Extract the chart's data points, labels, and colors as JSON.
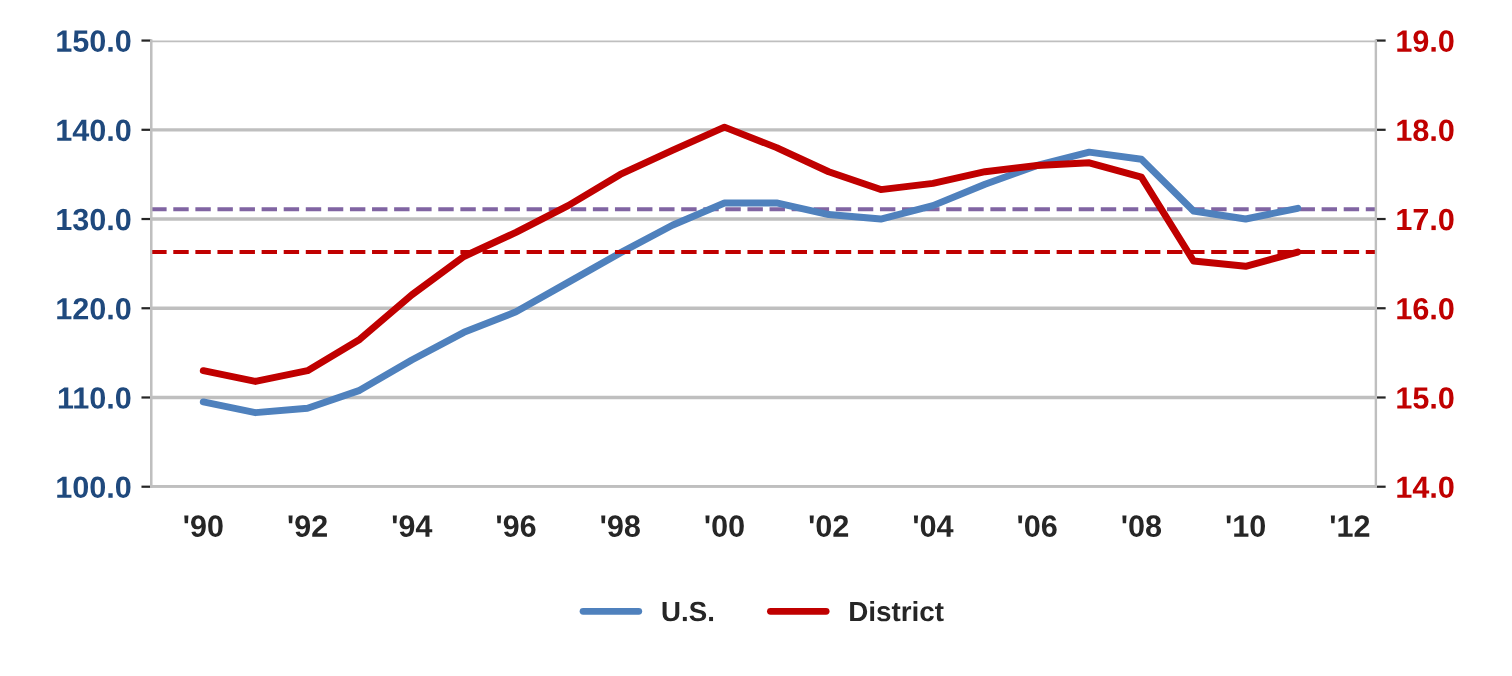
{
  "chart_data": {
    "type": "line",
    "categories": [
      "'90",
      null,
      "'92",
      null,
      "'94",
      null,
      "'96",
      null,
      "'98",
      null,
      "'00",
      null,
      "'02",
      null,
      "'04",
      null,
      "'06",
      null,
      "'08",
      null,
      "'10",
      null,
      "'12"
    ],
    "series": [
      {
        "name": "U.S.",
        "color": "#4f81bd",
        "values": [
          109.5,
          108.3,
          108.8,
          110.8,
          114.2,
          117.3,
          119.6,
          122.9,
          126.2,
          129.3,
          131.8,
          131.8,
          130.5,
          130.0,
          131.5,
          133.9,
          136.0,
          137.5,
          136.7,
          130.9,
          130.0,
          131.2,
          null
        ]
      },
      {
        "name": "District",
        "color": "#c00000",
        "axis": "y2",
        "values": [
          15.3,
          15.18,
          15.3,
          15.65,
          16.15,
          16.58,
          16.85,
          17.15,
          17.5,
          17.77,
          18.03,
          17.8,
          17.53,
          17.33,
          17.4,
          17.53,
          17.6,
          17.63,
          17.47,
          16.53,
          16.47,
          16.63,
          null
        ]
      }
    ],
    "ylim": [
      100,
      150
    ],
    "yticks": [
      {
        "value": 100,
        "label": "100.0"
      },
      {
        "value": 110,
        "label": "110.0"
      },
      {
        "value": 120,
        "label": "120.0"
      },
      {
        "value": 130,
        "label": "130.0"
      },
      {
        "value": 140,
        "label": "140.0"
      },
      {
        "value": 150,
        "label": "150.0"
      }
    ],
    "y2lim": [
      14,
      19
    ],
    "y2ticks": [
      {
        "value": 14,
        "label": "14.0"
      },
      {
        "value": 15,
        "label": "15.0"
      },
      {
        "value": 16,
        "label": "16.0"
      },
      {
        "value": 17,
        "label": "17.0"
      },
      {
        "value": 18,
        "label": "18.0"
      },
      {
        "value": 19,
        "label": "19.0"
      }
    ],
    "ref_lines": [
      {
        "axis": "y",
        "value": 131.1,
        "color": "#8064a2",
        "line_style": "dashed"
      },
      {
        "axis": "y2",
        "value": 16.63,
        "color": "#c00000",
        "line_style": "dashed"
      }
    ],
    "grid": "y",
    "legend": "bottom",
    "line_style": "solid",
    "marker": "none"
  }
}
